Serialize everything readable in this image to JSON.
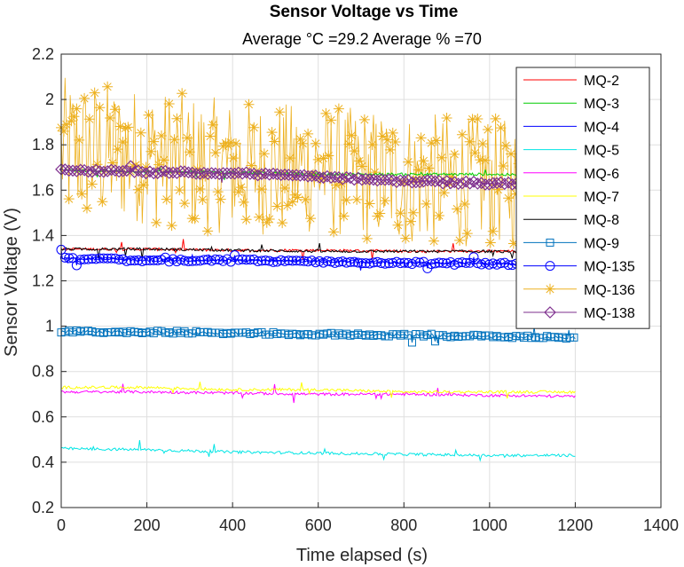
{
  "chart_data": {
    "type": "line",
    "title": "Sensor Voltage vs Time",
    "subtitle": "Average °C =29.2     Average % =70",
    "xlabel": "Time elapsed (s)",
    "ylabel": "Sensor Voltage (V)",
    "xlim": [
      0,
      1400
    ],
    "ylim": [
      0.2,
      2.2
    ],
    "xticks": [
      0,
      200,
      400,
      600,
      800,
      1000,
      1200,
      1400
    ],
    "yticks": [
      0.2,
      0.4,
      0.6,
      0.8,
      1,
      1.2,
      1.4,
      1.6,
      1.8,
      2,
      2.2
    ],
    "xtick_labels": [
      "0",
      "200",
      "400",
      "600",
      "800",
      "1000",
      "1200",
      "1400"
    ],
    "ytick_labels": [
      "0.2",
      "0.4",
      "0.6",
      "0.8",
      "1",
      "1.2",
      "1.4",
      "1.6",
      "1.8",
      "2",
      "2.2"
    ],
    "grid": true,
    "legend_position": "top-right",
    "series": [
      {
        "name": "MQ-2",
        "color": "#ff0000",
        "marker": "none",
        "x": [
          0,
          200,
          400,
          600,
          800,
          1000,
          1200
        ],
        "y": [
          1.34,
          1.34,
          1.335,
          1.335,
          1.33,
          1.33,
          1.33
        ]
      },
      {
        "name": "MQ-3",
        "color": "#00cc00",
        "marker": "none",
        "x": [
          0,
          200,
          400,
          600,
          800,
          1000,
          1200
        ],
        "y": [
          1.69,
          1.68,
          1.68,
          1.67,
          1.67,
          1.67,
          1.66
        ]
      },
      {
        "name": "MQ-4",
        "color": "#0000ff",
        "marker": "none",
        "x": [
          0,
          200,
          400,
          600,
          800,
          1000,
          1200
        ],
        "y": [
          1.3,
          1.3,
          1.29,
          1.29,
          1.28,
          1.28,
          1.27
        ]
      },
      {
        "name": "MQ-5",
        "color": "#00e5e5",
        "marker": "none",
        "x": [
          0,
          200,
          400,
          600,
          800,
          1000,
          1200
        ],
        "y": [
          0.46,
          0.455,
          0.445,
          0.44,
          0.435,
          0.43,
          0.43
        ]
      },
      {
        "name": "MQ-6",
        "color": "#ff00ff",
        "marker": "none",
        "x": [
          0,
          200,
          400,
          600,
          800,
          1000,
          1200
        ],
        "y": [
          0.71,
          0.71,
          0.705,
          0.7,
          0.7,
          0.695,
          0.69
        ]
      },
      {
        "name": "MQ-7",
        "color": "#ffff00",
        "marker": "none",
        "x": [
          0,
          200,
          400,
          600,
          800,
          1000,
          1200
        ],
        "y": [
          0.73,
          0.73,
          0.72,
          0.72,
          0.71,
          0.71,
          0.71
        ]
      },
      {
        "name": "MQ-8",
        "color": "#000000",
        "marker": "none",
        "x": [
          0,
          200,
          400,
          600,
          800,
          1000,
          1200
        ],
        "y": [
          1.34,
          1.34,
          1.335,
          1.33,
          1.33,
          1.33,
          1.32
        ]
      },
      {
        "name": "MQ-9",
        "color": "#0072bd",
        "marker": "square",
        "x": [
          0,
          200,
          400,
          600,
          800,
          1000,
          1200
        ],
        "y": [
          0.975,
          0.975,
          0.97,
          0.965,
          0.96,
          0.955,
          0.95
        ]
      },
      {
        "name": "MQ-135",
        "color": "#0000ff",
        "marker": "circle",
        "x": [
          0,
          200,
          400,
          600,
          800,
          1000,
          1200
        ],
        "y": [
          1.3,
          1.29,
          1.29,
          1.285,
          1.28,
          1.275,
          1.27
        ]
      },
      {
        "name": "MQ-136",
        "color": "#edb120",
        "marker": "asterisk",
        "x": [
          0,
          200,
          400,
          600,
          800,
          1000,
          1200
        ],
        "y": [
          1.75,
          1.72,
          1.7,
          1.68,
          1.65,
          1.62,
          1.6
        ],
        "y_low": [
          1.45,
          1.45,
          1.4,
          1.4,
          1.35,
          1.35,
          1.35
        ],
        "y_high": [
          2.1,
          2.05,
          2.0,
          1.98,
          1.95,
          1.92,
          1.9
        ]
      },
      {
        "name": "MQ-138",
        "color": "#7e2f8e",
        "marker": "diamond",
        "x": [
          0,
          200,
          400,
          600,
          800,
          1000,
          1200
        ],
        "y": [
          1.69,
          1.68,
          1.675,
          1.66,
          1.64,
          1.63,
          1.62
        ]
      }
    ]
  }
}
